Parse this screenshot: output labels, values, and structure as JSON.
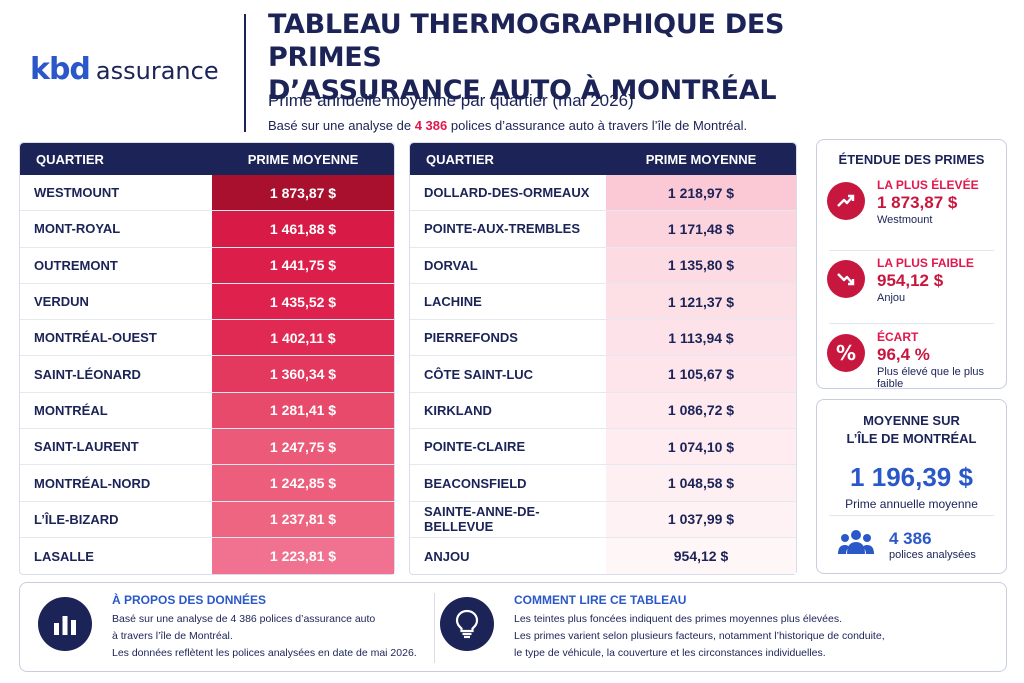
{
  "logo": {
    "brand": "kbd",
    "word": "assurance"
  },
  "header": {
    "title_line1": "TABLEAU THERMOGRAPHIQUE DES PRIMES",
    "title_line2": "D’ASSURANCE AUTO À MONTRÉAL",
    "subtitle": "Prime annuelle moyenne par quartier (mai 2026)",
    "basis_prefix": "Basé sur une analyse de ",
    "basis_count": "4 386",
    "basis_suffix": " polices d’assurance auto à travers l’île de Montréal."
  },
  "table_headers": {
    "quartier": "QUARTIER",
    "prime": "PRIME MOYENNE"
  },
  "left_rows": [
    {
      "name": "WESTMOUNT",
      "value": "1 873,87 $",
      "bg": "#a8102e"
    },
    {
      "name": "MONT-ROYAL",
      "value": "1 461,88 $",
      "bg": "#d81b46"
    },
    {
      "name": "OUTREMONT",
      "value": "1 441,75 $",
      "bg": "#dc1e4a"
    },
    {
      "name": "VERDUN",
      "value": "1 435,52 $",
      "bg": "#de224d"
    },
    {
      "name": "MONTRÉAL-OUEST",
      "value": "1 402,11 $",
      "bg": "#e12a53"
    },
    {
      "name": "SAINT-LÉONARD",
      "value": "1 360,34 $",
      "bg": "#e4395e"
    },
    {
      "name": "MONTRÉAL",
      "value": "1 281,41 $",
      "bg": "#e84a6c"
    },
    {
      "name": "SAINT-LAURENT",
      "value": "1 247,75 $",
      "bg": "#eb5a78"
    },
    {
      "name": "MONTRÉAL-NORD",
      "value": "1 242,85 $",
      "bg": "#ec5e7c"
    },
    {
      "name": "L’ÎLE-BIZARD",
      "value": "1 237,81 $",
      "bg": "#ee6582"
    },
    {
      "name": "LASALLE",
      "value": "1 223,81 $",
      "bg": "#f07290"
    }
  ],
  "right_rows": [
    {
      "name": "DOLLARD-DES-ORMEAUX",
      "value": "1 218,97 $",
      "bg": "#fbc9d5"
    },
    {
      "name": "POINTE-AUX-TREMBLES",
      "value": "1 171,48 $",
      "bg": "#fcd4de"
    },
    {
      "name": "DORVAL",
      "value": "1 135,80 $",
      "bg": "#fcdbe3"
    },
    {
      "name": "LACHINE",
      "value": "1 121,37 $",
      "bg": "#fddfe6"
    },
    {
      "name": "PIERREFONDS",
      "value": "1 113,94 $",
      "bg": "#fde2e9"
    },
    {
      "name": "CÔTE SAINT-LUC",
      "value": "1 105,67 $",
      "bg": "#fde5eb"
    },
    {
      "name": "KIRKLAND",
      "value": "1 086,72 $",
      "bg": "#fde9ee"
    },
    {
      "name": "POINTE-CLAIRE",
      "value": "1 074,10 $",
      "bg": "#feecf0"
    },
    {
      "name": "BEACONSFIELD",
      "value": "1 048,58 $",
      "bg": "#feeff3"
    },
    {
      "name": "SAINTE-ANNE-DE-BELLEVUE",
      "value": "1 037,99 $",
      "bg": "#fef2f5"
    },
    {
      "name": "ANJOU",
      "value": "954,12 $",
      "bg": "#fff6f8"
    }
  ],
  "range_card": {
    "title": "ÉTENDUE DES PRIMES",
    "highest": {
      "label": "LA PLUS ÉLEVÉE",
      "value": "1 873,87 $",
      "sub": "Westmount",
      "icon": "trend-up-icon"
    },
    "lowest": {
      "label": "LA PLUS FAIBLE",
      "value": "954,12 $",
      "sub": "Anjou",
      "icon": "trend-down-icon"
    },
    "gap": {
      "label": "ÉCART",
      "value": "96,4 %",
      "sub": "Plus élevé que le plus faible",
      "icon": "percent-icon"
    }
  },
  "avg_card": {
    "title_line1": "MOYENNE SUR",
    "title_line2": "L’ÎLE DE MONTRÉAL",
    "value": "1 196,39 $",
    "caption": "Prime annuelle moyenne",
    "policies_count": "4 386",
    "policies_label": "polices analysées",
    "icon": "people-icon"
  },
  "about": {
    "title": "À PROPOS DES DONNÉES",
    "line1": "Basé sur une analyse de 4 386 polices d’assurance auto",
    "line2": "à travers l’île de Montréal.",
    "line3": "Les données reflètent les polices analysées en date de mai 2026.",
    "icon": "bar-chart-icon"
  },
  "howto": {
    "title": "COMMENT LIRE CE TABLEAU",
    "line1": "Les teintes plus foncées indiquent des primes moyennes plus élevées.",
    "line2": "Les primes varient selon plusieurs facteurs, notamment l’historique de conduite,",
    "line3": "le type de véhicule, la couverture et les circonstances individuelles.",
    "icon": "lightbulb-icon"
  }
}
